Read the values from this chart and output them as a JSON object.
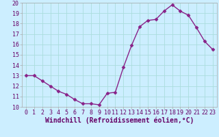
{
  "x": [
    0,
    1,
    2,
    3,
    4,
    5,
    6,
    7,
    8,
    9,
    10,
    11,
    12,
    13,
    14,
    15,
    16,
    17,
    18,
    19,
    20,
    21,
    22,
    23
  ],
  "y": [
    13.0,
    13.0,
    12.5,
    12.0,
    11.5,
    11.2,
    10.7,
    10.3,
    10.3,
    10.2,
    11.3,
    11.4,
    13.8,
    15.9,
    17.7,
    18.3,
    18.4,
    19.2,
    19.8,
    19.2,
    18.8,
    17.6,
    16.3,
    15.5
  ],
  "line_color": "#882288",
  "marker": "D",
  "marker_size": 2.5,
  "bg_color": "#cceeff",
  "grid_color": "#aadddd",
  "xlabel": "Windchill (Refroidissement éolien,°C)",
  "ylim": [
    10,
    20
  ],
  "xlim": [
    -0.5,
    23.5
  ],
  "yticks": [
    10,
    11,
    12,
    13,
    14,
    15,
    16,
    17,
    18,
    19,
    20
  ],
  "xticks": [
    0,
    1,
    2,
    3,
    4,
    5,
    6,
    7,
    8,
    9,
    10,
    11,
    12,
    13,
    14,
    15,
    16,
    17,
    18,
    19,
    20,
    21,
    22,
    23
  ],
  "xlabel_fontsize": 7,
  "tick_fontsize": 6,
  "line_width": 1.0,
  "fig_width": 3.2,
  "fig_height": 2.0,
  "dpi": 100
}
